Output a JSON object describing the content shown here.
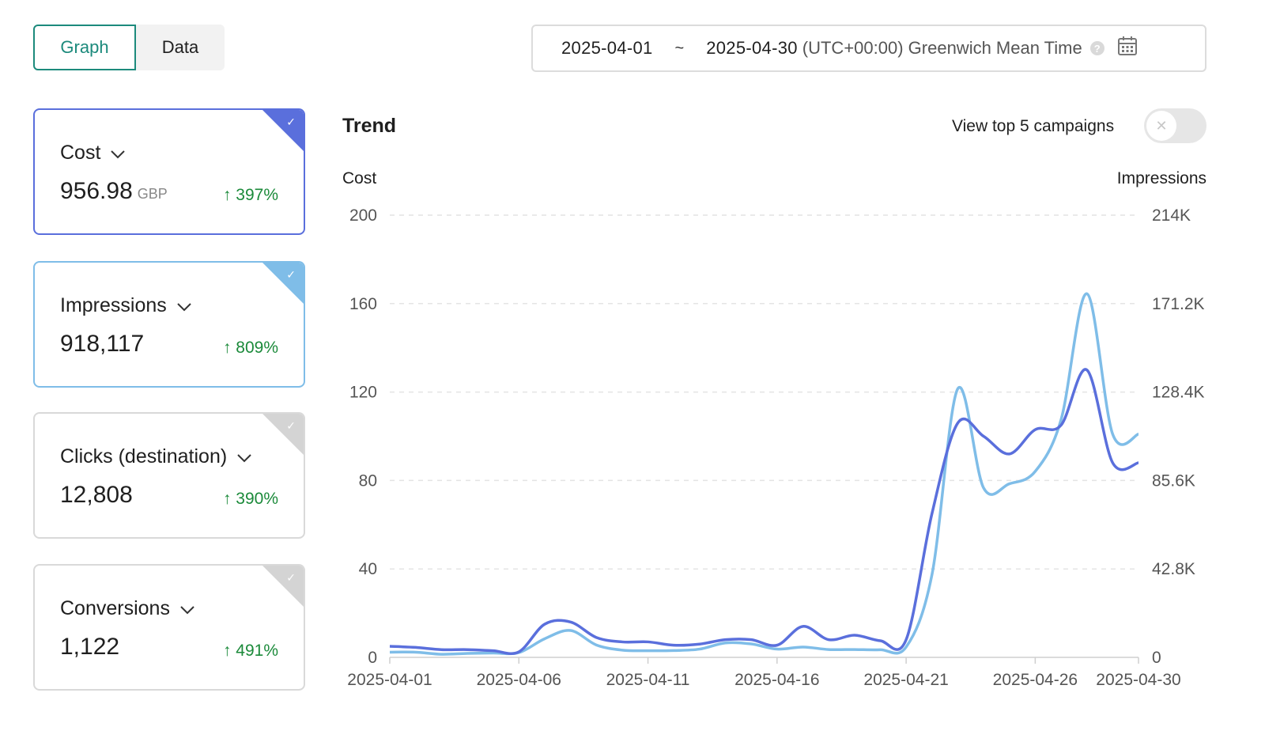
{
  "view_toggle": {
    "graph_label": "Graph",
    "data_label": "Data"
  },
  "date_range": {
    "start": "2025-04-01",
    "separator": "~",
    "end": "2025-04-30",
    "timezone": "(UTC+00:00) Greenwich Mean Time",
    "help_icon": "question-circle-icon",
    "calendar_icon": "calendar-icon"
  },
  "metrics": [
    {
      "label": "Cost",
      "value": "956.98",
      "unit": "GBP",
      "change": "↑ 397%",
      "selected": true,
      "color": "#5a6fdc"
    },
    {
      "label": "Impressions",
      "value": "918,117",
      "unit": "",
      "change": "↑ 809%",
      "selected": true,
      "color": "#7fbde8"
    },
    {
      "label": "Clicks (destination)",
      "value": "12,808",
      "unit": "",
      "change": "↑ 390%",
      "selected": false,
      "color": "#d4d4d4"
    },
    {
      "label": "Conversions",
      "value": "1,122",
      "unit": "",
      "change": "↑ 491%",
      "selected": false,
      "color": "#d4d4d4"
    }
  ],
  "trend": {
    "title": "Trend",
    "top5_label": "View top 5 campaigns",
    "top5_enabled": false
  },
  "chart_data": {
    "type": "line",
    "left_axis_label": "Cost",
    "right_axis_label": "Impressions",
    "left_ticks": [
      "0",
      "40",
      "80",
      "120",
      "160",
      "200"
    ],
    "right_ticks": [
      "0",
      "42.8K",
      "85.6K",
      "128.4K",
      "171.2K",
      "214K"
    ],
    "left_ylim": [
      0,
      200
    ],
    "right_ylim": [
      0,
      214000
    ],
    "x_tick_labels": [
      "2025-04-01",
      "2025-04-06",
      "2025-04-11",
      "2025-04-16",
      "2025-04-21",
      "2025-04-26",
      "2025-04-30"
    ],
    "x": [
      "2025-04-01",
      "2025-04-02",
      "2025-04-03",
      "2025-04-04",
      "2025-04-05",
      "2025-04-06",
      "2025-04-07",
      "2025-04-08",
      "2025-04-09",
      "2025-04-10",
      "2025-04-11",
      "2025-04-12",
      "2025-04-13",
      "2025-04-14",
      "2025-04-15",
      "2025-04-16",
      "2025-04-17",
      "2025-04-18",
      "2025-04-19",
      "2025-04-20",
      "2025-04-21",
      "2025-04-22",
      "2025-04-23",
      "2025-04-24",
      "2025-04-25",
      "2025-04-26",
      "2025-04-27",
      "2025-04-28",
      "2025-04-29",
      "2025-04-30"
    ],
    "grid": true,
    "series": [
      {
        "name": "Cost",
        "axis": "left",
        "color": "#5a6fdc",
        "values": [
          5,
          4.5,
          3.5,
          3.5,
          3,
          2.5,
          15,
          16,
          9,
          7,
          7,
          5.5,
          6,
          8,
          8,
          5.5,
          14,
          8,
          10,
          7.5,
          8,
          65,
          106,
          100,
          92,
          103,
          105,
          130,
          88,
          88
        ]
      },
      {
        "name": "Impressions",
        "axis": "right",
        "color": "#7fbde8",
        "values": [
          2500,
          2500,
          1500,
          1900,
          2100,
          2300,
          9000,
          13000,
          6000,
          3500,
          3200,
          3300,
          4000,
          7000,
          6500,
          4000,
          5000,
          3800,
          3800,
          3700,
          5000,
          40000,
          130000,
          82000,
          84000,
          90000,
          115000,
          176000,
          108000,
          108000
        ]
      }
    ]
  }
}
